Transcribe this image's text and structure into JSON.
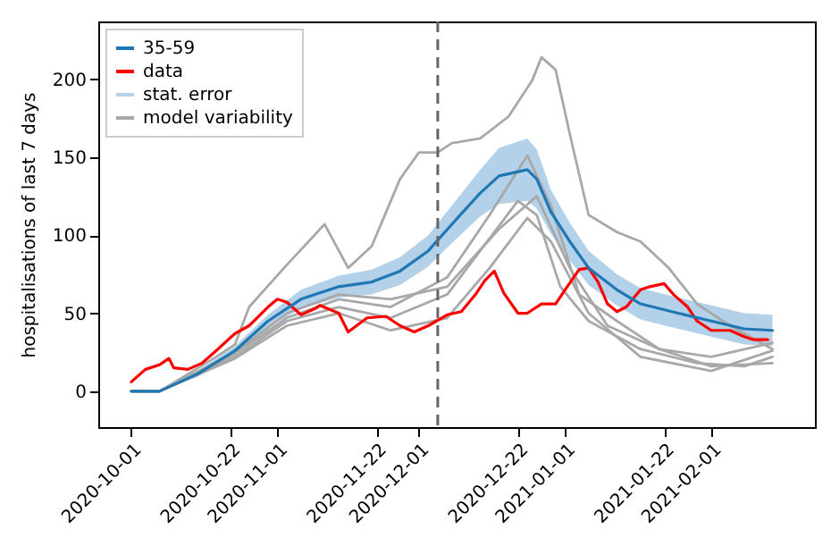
{
  "chart_data": {
    "type": "line",
    "ylabel": "hospitalisations of last 7 days",
    "xlim": [
      "2020-09-24",
      "2021-02-23"
    ],
    "ylim": [
      -23,
      237
    ],
    "yticks": [
      0,
      50,
      100,
      150,
      200
    ],
    "xticks": [
      "2020-10-01",
      "2020-10-22",
      "2020-11-01",
      "2020-11-22",
      "2020-12-01",
      "2020-12-22",
      "2021-01-01",
      "2021-01-22",
      "2021-02-01"
    ],
    "legend": "top left",
    "grid": false,
    "line_style": "solid",
    "ref_lines": [
      {
        "axis": "x",
        "value": "2020-12-05",
        "color": "#666666",
        "line_style": "dashed"
      }
    ],
    "series": [
      {
        "name": "35-59",
        "color": "#1f77b4",
        "x": [
          "2020-10-01",
          "2020-10-07",
          "2020-10-15",
          "2020-10-23",
          "2020-10-30",
          "2020-11-06",
          "2020-11-14",
          "2020-11-21",
          "2020-11-27",
          "2020-12-03",
          "2020-12-08",
          "2020-12-14",
          "2020-12-18",
          "2020-12-24",
          "2020-12-26",
          "2020-12-29",
          "2021-01-02",
          "2021-01-06",
          "2021-01-12",
          "2021-01-17",
          "2021-01-25",
          "2021-02-01",
          "2021-02-08",
          "2021-02-14"
        ],
        "values": [
          0,
          0,
          11,
          26,
          45,
          59,
          67,
          70,
          77,
          90,
          107,
          127,
          138,
          142,
          136,
          115,
          96,
          79,
          65,
          56,
          50,
          45,
          40,
          39
        ],
        "lower": [
          0,
          0,
          9,
          23,
          41,
          53,
          60,
          62,
          68,
          80,
          95,
          112,
          120,
          122,
          117,
          101,
          84,
          68,
          55,
          46,
          40,
          35,
          30,
          29
        ],
        "upper": [
          0,
          0,
          13,
          29,
          49,
          65,
          74,
          78,
          86,
          100,
          119,
          142,
          156,
          162,
          155,
          129,
          108,
          90,
          75,
          66,
          60,
          55,
          50,
          49
        ]
      },
      {
        "name": "data",
        "color": "#ff0000",
        "x": [
          "2020-10-01",
          "2020-10-04",
          "2020-10-07",
          "2020-10-09",
          "2020-10-10",
          "2020-10-13",
          "2020-10-16",
          "2020-10-19",
          "2020-10-23",
          "2020-10-26",
          "2020-10-30",
          "2020-11-01",
          "2020-11-03",
          "2020-11-06",
          "2020-11-09",
          "2020-11-10",
          "2020-11-14",
          "2020-11-16",
          "2020-11-20",
          "2020-11-24",
          "2020-11-27",
          "2020-11-30",
          "2020-12-03",
          "2020-12-07",
          "2020-12-10",
          "2020-12-13",
          "2020-12-15",
          "2020-12-17",
          "2020-12-19",
          "2020-12-22",
          "2020-12-24",
          "2020-12-27",
          "2020-12-30",
          "2021-01-01",
          "2021-01-04",
          "2021-01-06",
          "2021-01-08",
          "2021-01-10",
          "2021-01-12",
          "2021-01-14",
          "2021-01-17",
          "2021-01-19",
          "2021-01-22",
          "2021-01-24",
          "2021-01-27",
          "2021-01-29",
          "2021-02-01",
          "2021-02-05",
          "2021-02-08",
          "2021-02-10",
          "2021-02-13"
        ],
        "values": [
          6,
          14,
          17,
          21,
          15,
          14,
          18,
          26,
          37,
          42,
          54,
          59,
          57,
          49,
          53,
          55,
          50,
          38,
          47,
          48,
          42,
          38,
          42,
          49,
          51,
          62,
          71,
          77,
          63,
          50,
          50,
          56,
          56,
          65,
          78,
          79,
          70,
          56,
          51,
          54,
          65,
          67,
          69,
          62,
          54,
          45,
          39,
          39,
          35,
          33,
          33
        ]
      },
      {
        "type": "area",
        "name": "stat. error",
        "color": "#b3d1e8"
      },
      {
        "name": "model variability",
        "color": "#a8a8a8",
        "x": [
          "2020-10-01",
          "2020-10-07",
          "2020-10-19",
          "2020-10-23",
          "2020-10-26",
          "2020-11-03",
          "2020-11-11",
          "2020-11-16",
          "2020-11-21",
          "2020-11-27",
          "2020-12-01",
          "2020-12-05",
          "2020-12-08",
          "2020-12-14",
          "2020-12-20",
          "2020-12-25",
          "2020-12-27",
          "2020-12-30",
          "2021-01-02",
          "2021-01-06",
          "2021-01-12",
          "2021-01-17",
          "2021-01-23",
          "2021-01-29",
          "2021-02-05",
          "2021-02-14"
        ],
        "values": [
          0,
          0,
          22,
          30,
          54,
          81,
          107,
          79,
          93,
          136,
          153,
          153,
          159,
          162,
          176,
          199,
          214,
          206,
          165,
          113,
          102,
          96,
          79,
          56,
          42,
          27
        ]
      },
      {
        "color": "#a8a8a8",
        "x": [
          "2020-10-01",
          "2020-10-07",
          "2020-10-23",
          "2020-11-03",
          "2020-11-14",
          "2020-11-25",
          "2020-12-07",
          "2020-12-14",
          "2020-12-22",
          "2020-12-26",
          "2020-12-31",
          "2021-01-06",
          "2021-01-17",
          "2021-01-29",
          "2021-02-08",
          "2021-02-14"
        ],
        "values": [
          0,
          0,
          22,
          45,
          54,
          47,
          62,
          90,
          122,
          113,
          67,
          45,
          27,
          18,
          16,
          22
        ]
      },
      {
        "color": "#a8a8a8",
        "x": [
          "2020-10-01",
          "2020-10-07",
          "2020-10-23",
          "2020-11-03",
          "2020-11-14",
          "2020-11-25",
          "2020-12-07",
          "2020-12-16",
          "2020-12-24",
          "2020-12-29",
          "2021-01-04",
          "2021-01-12",
          "2021-01-21",
          "2021-02-01",
          "2021-02-14"
        ],
        "values": [
          0,
          0,
          24,
          47,
          59,
          54,
          73,
          113,
          151,
          119,
          62,
          45,
          27,
          16,
          18
        ]
      },
      {
        "color": "#a8a8a8",
        "x": [
          "2020-10-01",
          "2020-10-07",
          "2020-10-23",
          "2020-11-03",
          "2020-11-14",
          "2020-11-25",
          "2020-12-07",
          "2020-12-16",
          "2020-12-24",
          "2020-12-29",
          "2021-01-06",
          "2021-01-17",
          "2021-02-01",
          "2021-02-14"
        ],
        "values": [
          0,
          0,
          21,
          42,
          50,
          39,
          47,
          79,
          111,
          96,
          50,
          22,
          13,
          26
        ]
      },
      {
        "color": "#a8a8a8",
        "x": [
          "2020-10-01",
          "2020-10-07",
          "2020-10-23",
          "2020-11-03",
          "2020-11-14",
          "2020-11-25",
          "2020-12-07",
          "2020-12-18",
          "2020-12-26",
          "2021-01-02",
          "2021-01-10",
          "2021-01-21",
          "2021-02-01",
          "2021-02-14"
        ],
        "values": [
          0,
          0,
          25,
          50,
          62,
          59,
          67,
          104,
          125,
          79,
          42,
          27,
          22,
          31
        ]
      }
    ]
  }
}
